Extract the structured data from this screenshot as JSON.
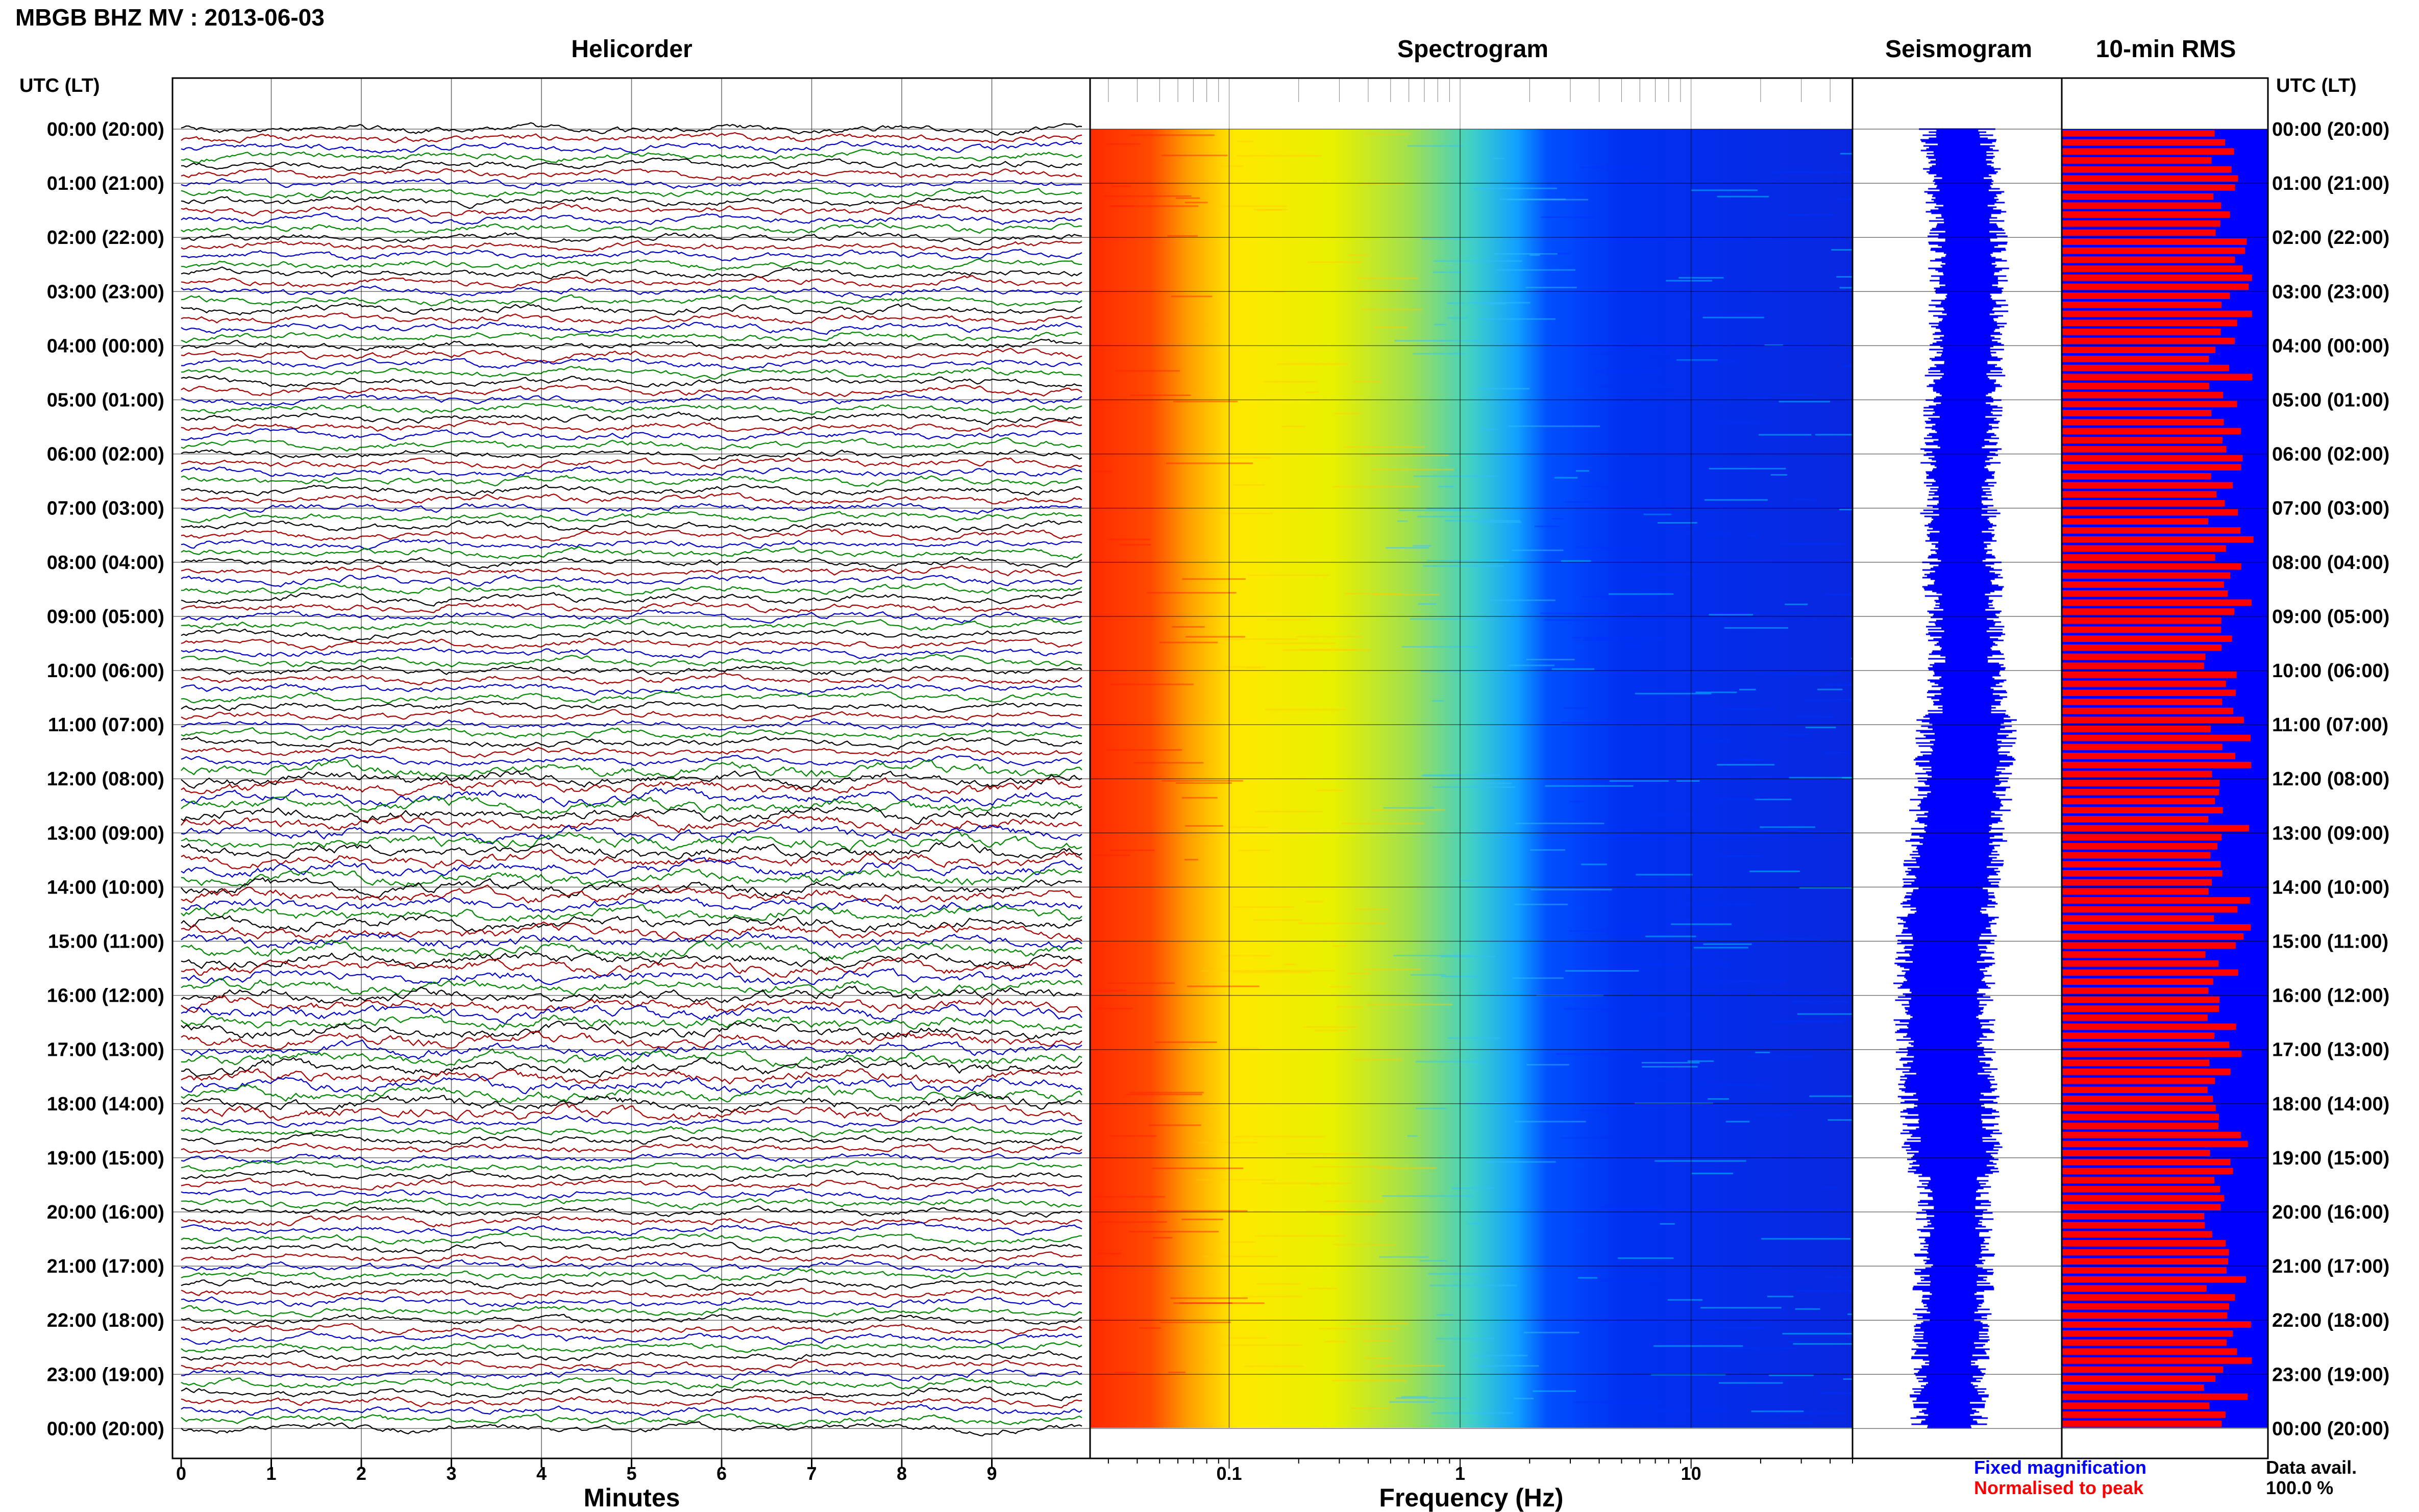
{
  "header": {
    "title": "MBGB BHZ MV : 2013-06-03"
  },
  "chart_data": {
    "type": "helicorder",
    "station": "MBGB BHZ MV",
    "date": "2013-06-03",
    "time_axis_label": "UTC (LT)",
    "time_labels": [
      "00:00 (20:00)",
      "01:00 (21:00)",
      "02:00 (22:00)",
      "03:00 (23:00)",
      "04:00 (00:00)",
      "05:00 (01:00)",
      "06:00 (02:00)",
      "07:00 (03:00)",
      "08:00 (04:00)",
      "09:00 (05:00)",
      "10:00 (06:00)",
      "11:00 (07:00)",
      "12:00 (08:00)",
      "13:00 (09:00)",
      "14:00 (10:00)",
      "15:00 (11:00)",
      "16:00 (12:00)",
      "17:00 (13:00)",
      "18:00 (14:00)",
      "19:00 (15:00)",
      "20:00 (16:00)",
      "21:00 (17:00)",
      "22:00 (18:00)",
      "23:00 (19:00)",
      "00:00 (20:00)"
    ],
    "panels": [
      {
        "title": "Helicorder",
        "xlabel": "Minutes",
        "xticks": [
          "0",
          "1",
          "2",
          "3",
          "4",
          "5",
          "6",
          "7",
          "8",
          "9"
        ],
        "xlim": [
          0,
          10
        ],
        "trace_colors": [
          "#000000",
          "#aa0000",
          "#0000cc",
          "#008800"
        ],
        "traces_per_hour": 6
      },
      {
        "title": "Spectrogram",
        "xlabel": "Frequency (Hz)",
        "xscale": "log",
        "xticks": [
          "0.1",
          "1",
          "10"
        ],
        "xlim": [
          0.025,
          50
        ]
      },
      {
        "title": "Seismogram"
      },
      {
        "title": "10-min RMS"
      }
    ],
    "legend": {
      "fixed_label": "Fixed magnification",
      "fixed_color": "#0000ff",
      "normalised_label": "Normalised to peak",
      "normalised_color": "#ff0000"
    },
    "availability": {
      "label": "Data avail.",
      "value": "100.0 %"
    }
  }
}
